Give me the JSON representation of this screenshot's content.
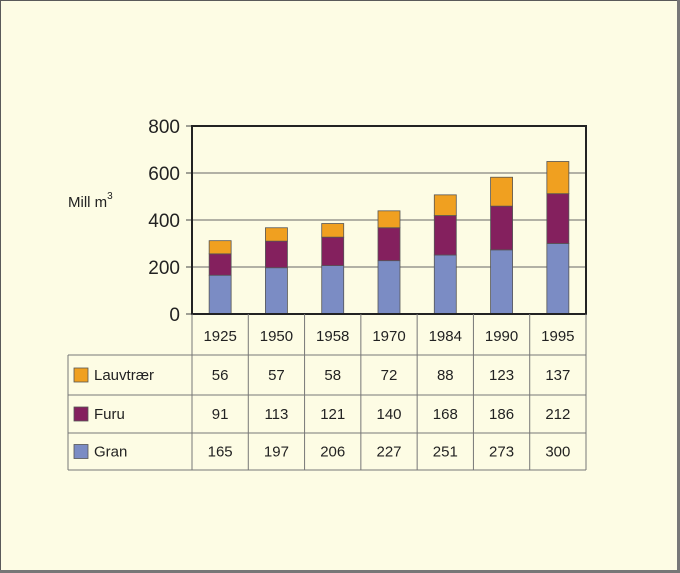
{
  "chart_data": {
    "type": "bar",
    "stacked": true,
    "title": "",
    "ylabel": "Mill m",
    "ylabel_sup": "3",
    "ylim": [
      0,
      800
    ],
    "yticks": [
      "0",
      "200",
      "400",
      "600",
      "800"
    ],
    "grid": true,
    "categories": [
      "1925",
      "1950",
      "1958",
      "1970",
      "1984",
      "1990",
      "1995"
    ],
    "series": [
      {
        "name": "Gran",
        "color": "#7b8cc4",
        "values": [
          165,
          197,
          206,
          227,
          251,
          273,
          300
        ]
      },
      {
        "name": "Furu",
        "color": "#84205e",
        "values": [
          91,
          113,
          121,
          140,
          168,
          186,
          212
        ]
      },
      {
        "name": "Lauvtrær",
        "color": "#f0a020",
        "values": [
          56,
          57,
          58,
          72,
          88,
          123,
          137
        ]
      }
    ],
    "legend": "table-below"
  }
}
